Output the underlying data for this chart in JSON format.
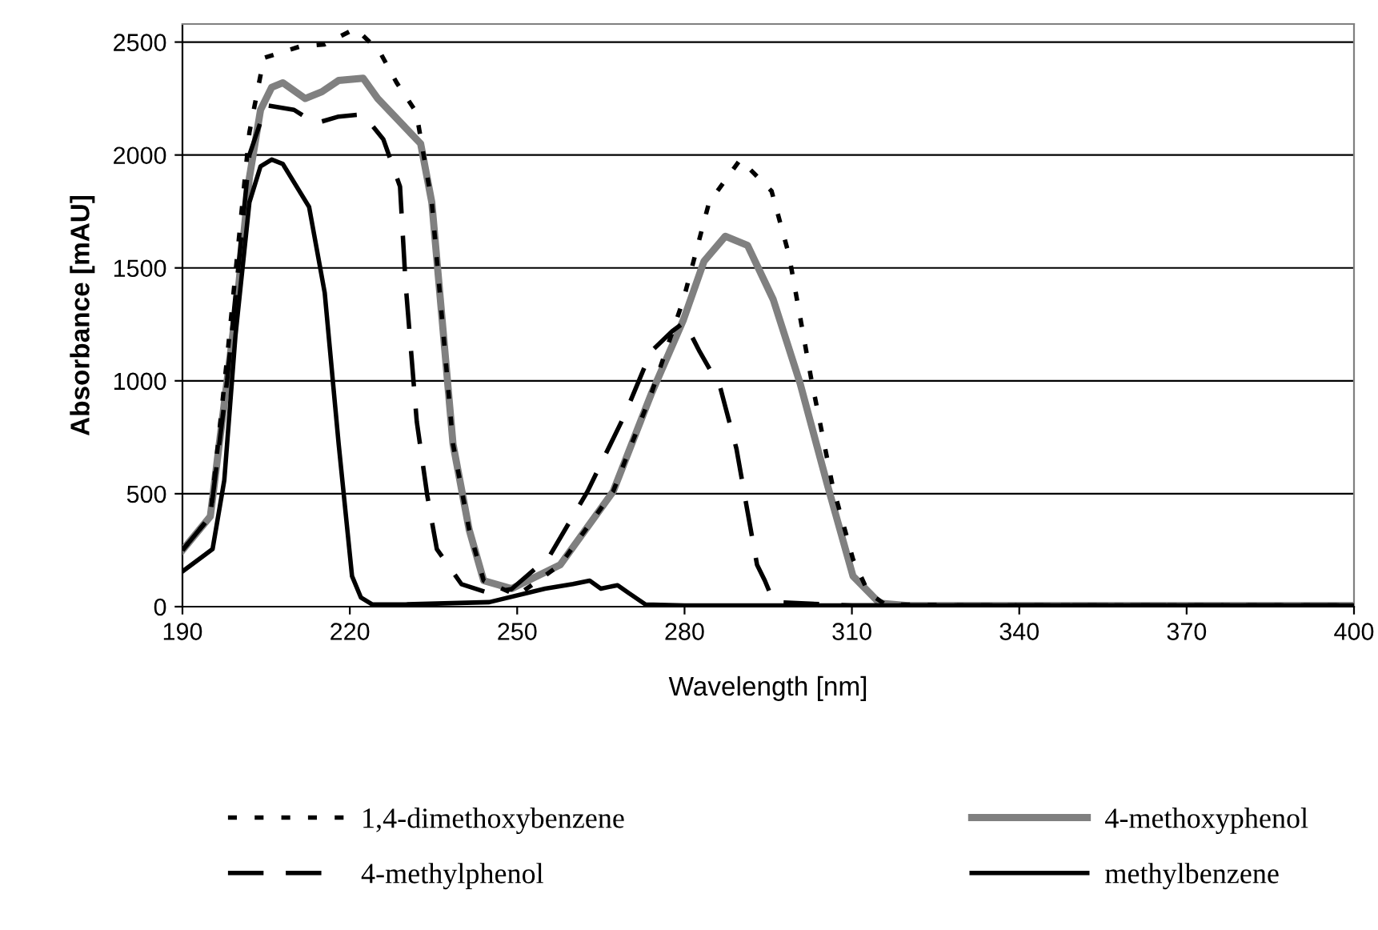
{
  "chart_data": {
    "type": "line",
    "xlabel": "Wavelength [nm]",
    "ylabel": "Absorbance [mAU]",
    "xlim": [
      190,
      400
    ],
    "ylim": [
      0,
      2580
    ],
    "xticks": [
      190,
      220,
      250,
      280,
      310,
      340,
      370,
      400
    ],
    "yticks": [
      0,
      500,
      1000,
      1500,
      2000,
      2500
    ],
    "grid": "y",
    "legend": "bottom",
    "marker": "none",
    "series": [
      {
        "name": "1,4-dimethoxybenzene",
        "color": "#000000",
        "line_style": "dotted",
        "x": [
          190,
          195,
          198,
          200,
          202,
          204.6,
          211,
          215.5,
          221,
          225.3,
          228.4,
          231.9,
          234.7,
          236.8,
          238.5,
          241.4,
          244,
          250,
          257.7,
          267.2,
          274,
          279.8,
          284.4,
          290,
          295.6,
          298.7,
          302.7,
          306.5,
          310.2,
          313,
          316,
          330,
          400
        ],
        "values": [
          250,
          400,
          1100,
          1600,
          2100,
          2430,
          2480,
          2490,
          2560,
          2460,
          2320,
          2190,
          1790,
          1200,
          720,
          340,
          115,
          50,
          185,
          510,
          940,
          1360,
          1790,
          1980,
          1840,
          1560,
          1010,
          540,
          210,
          60,
          10,
          5,
          5
        ]
      },
      {
        "name": "4-methoxyphenol",
        "color": "#808080",
        "line_style": "solid",
        "x": [
          190,
          195,
          200,
          202,
          204,
          206,
          208,
          212,
          215,
          218,
          222.4,
          225,
          232.7,
          234.7,
          236.8,
          238.5,
          241.4,
          244,
          249,
          257.7,
          267.2,
          274,
          279.8,
          283.5,
          287.3,
          291.3,
          295.9,
          300.7,
          305.6,
          310.2,
          315,
          320,
          400
        ],
        "values": [
          250,
          400,
          1400,
          1900,
          2200,
          2300,
          2320,
          2250,
          2280,
          2330,
          2340,
          2250,
          2050,
          1790,
          1200,
          720,
          340,
          115,
          80,
          185,
          510,
          940,
          1270,
          1530,
          1640,
          1600,
          1360,
          990,
          540,
          135,
          15,
          5,
          5
        ]
      },
      {
        "name": "4-methylphenol",
        "color": "#000000",
        "line_style": "dashed",
        "x": [
          190,
          195,
          198,
          200,
          202,
          205,
          210,
          213.8,
          218,
          222.4,
          226,
          229,
          230,
          232,
          233.9,
          235.6,
          237.6,
          240,
          245,
          249,
          255.7,
          262.6,
          269.2,
          274,
          277.8,
          280,
          282.7,
          286.4,
          289.3,
          291.3,
          293,
          294.4,
          296,
          310,
          400
        ],
        "values": [
          250,
          400,
          1000,
          1500,
          2000,
          2220,
          2200,
          2140,
          2170,
          2180,
          2070,
          1860,
          1430,
          820,
          490,
          255,
          185,
          100,
          60,
          78,
          220,
          510,
          845,
          1130,
          1220,
          1260,
          1130,
          970,
          700,
          420,
          185,
          115,
          20,
          5,
          5
        ]
      },
      {
        "name": "methylbenzene",
        "color": "#000000",
        "line_style": "solid",
        "x": [
          190,
          195.4,
          197.5,
          199.5,
          202,
          204,
          206,
          208,
          212.7,
          215.5,
          218,
          220.4,
          222,
          224,
          230,
          245,
          255,
          260,
          263,
          265,
          268,
          270,
          273,
          280,
          400
        ],
        "values": [
          156,
          255,
          560,
          1200,
          1790,
          1950,
          1980,
          1960,
          1770,
          1390,
          720,
          135,
          40,
          10,
          10,
          20,
          80,
          100,
          115,
          80,
          95,
          60,
          10,
          5,
          5
        ]
      }
    ]
  }
}
